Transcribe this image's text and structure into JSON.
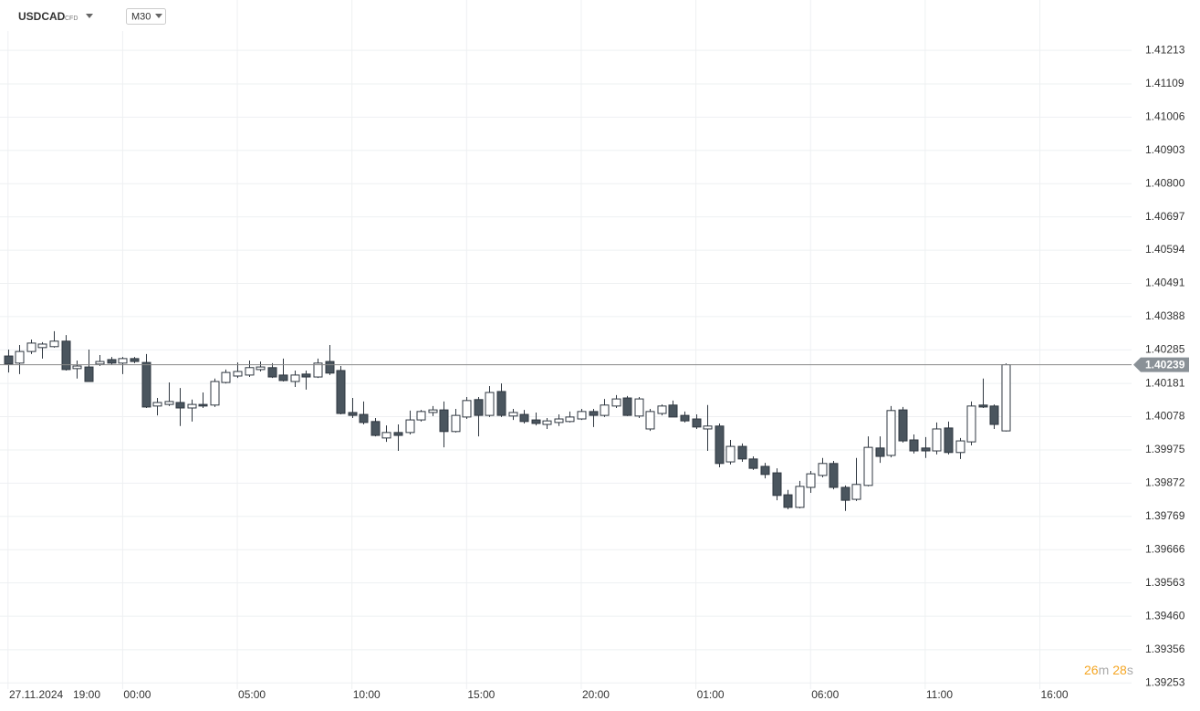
{
  "header": {
    "symbol": "USDCAD",
    "instrument_type": "CFD",
    "timeframe": "M30"
  },
  "countdown": {
    "minutes": "26",
    "minutes_unit": "m",
    "seconds": "28",
    "seconds_unit": "s"
  },
  "chart_data": {
    "type": "candlestick",
    "date_label": "27.11.2024",
    "up_color": "#ffffff",
    "down_color": "#4a555e",
    "outline_color": "#2f3740",
    "grid": true,
    "last_price": 1.40239,
    "xlim": [
      -0.7,
      98
    ],
    "xticks": [
      {
        "value": 0,
        "label": "19:00"
      },
      {
        "value": 10,
        "label": "00:00"
      },
      {
        "value": 20,
        "label": "05:00"
      },
      {
        "value": 30,
        "label": "10:00"
      },
      {
        "value": 40,
        "label": "15:00"
      },
      {
        "value": 50,
        "label": "20:00"
      },
      {
        "value": 60,
        "label": "01:00"
      },
      {
        "value": 70,
        "label": "06:00"
      },
      {
        "value": 80,
        "label": "11:00"
      },
      {
        "value": 90,
        "label": "16:00"
      }
    ],
    "ylim": [
      1.39234,
      1.41369
    ],
    "yticks": [
      1.41213,
      1.41109,
      1.41006,
      1.40903,
      {
        "value": 1.408,
        "label": "1.40800"
      },
      1.40697,
      1.40594,
      1.40491,
      1.40388,
      1.40285,
      1.40181,
      1.40078,
      1.39975,
      1.39872,
      1.39769,
      1.39666,
      1.39563,
      {
        "value": 1.3946,
        "label": "1.39460"
      },
      1.39356,
      1.39253
    ],
    "open": [
      1.40266,
      1.40244,
      1.4028,
      1.40292,
      1.40295,
      1.40312,
      1.40227,
      1.40232,
      1.40241,
      1.40255,
      1.40244,
      1.40258,
      1.40246,
      1.40111,
      1.40116,
      1.40122,
      1.40105,
      1.40116,
      1.40114,
      1.40184,
      1.40204,
      1.40207,
      1.40224,
      1.4023,
      1.40207,
      1.40187,
      1.4021,
      1.40201,
      1.40249,
      1.40221,
      1.40091,
      1.40085,
      1.40063,
      1.40012,
      1.40029,
      1.40029,
      1.40068,
      1.40091,
      1.40099,
      1.40032,
      1.40077,
      1.40131,
      1.40082,
      1.40156,
      1.4008,
      1.40085,
      1.40068,
      1.40054,
      1.4006,
      1.40063,
      1.40071,
      1.40094,
      1.40082,
      1.40111,
      1.40136,
      1.4008,
      1.4004,
      1.40088,
      1.40114,
      1.40082,
      1.40071,
      1.4004,
      1.40049,
      1.39938,
      1.39986,
      1.39947,
      1.39924,
      1.39904,
      1.39836,
      1.39797,
      1.39859,
      1.39896,
      1.39933,
      1.39859,
      1.39822,
      1.39865,
      1.39981,
      1.39958,
      1.40099,
      1.40006,
      1.39981,
      1.39972,
      1.40043,
      1.39967,
      1.4,
      1.40114,
      1.40111,
      1.40034
    ],
    "high": [
      1.40286,
      1.403,
      1.40317,
      1.40309,
      1.40343,
      1.40331,
      1.40252,
      1.40286,
      1.40269,
      1.40263,
      1.40263,
      1.40263,
      1.40272,
      1.40136,
      1.40184,
      1.40167,
      1.40131,
      1.40153,
      1.40196,
      1.40224,
      1.40246,
      1.40252,
      1.40249,
      1.40244,
      1.40258,
      1.40221,
      1.40221,
      1.40258,
      1.403,
      1.40235,
      1.40136,
      1.40125,
      1.40074,
      1.40051,
      1.40054,
      1.40097,
      1.40099,
      1.40111,
      1.40125,
      1.40102,
      1.40139,
      1.40139,
      1.40173,
      1.40181,
      1.40102,
      1.40099,
      1.40091,
      1.40074,
      1.40085,
      1.40094,
      1.40102,
      1.40102,
      1.40133,
      1.40145,
      1.40142,
      1.40139,
      1.40102,
      1.40116,
      1.40128,
      1.40094,
      1.40085,
      1.40114,
      1.40057,
      1.40006,
      1.39995,
      1.39955,
      1.39935,
      1.39918,
      1.39851,
      1.39879,
      1.3991,
      1.3995,
      1.39941,
      1.39865,
      1.3995,
      1.40017,
      1.40017,
      1.40111,
      1.40108,
      1.40023,
      1.40015,
      1.4006,
      1.40063,
      1.40012,
      1.40125,
      1.40196,
      1.40116,
      1.40243
    ],
    "low": [
      1.40215,
      1.4021,
      1.40272,
      1.40258,
      1.40292,
      1.40221,
      1.40196,
      1.40187,
      1.40235,
      1.40238,
      1.4021,
      1.40244,
      1.40105,
      1.40082,
      1.40111,
      1.40049,
      1.40063,
      1.40105,
      1.40108,
      1.40181,
      1.40198,
      1.40201,
      1.40218,
      1.40198,
      1.40187,
      1.4017,
      1.40162,
      1.40198,
      1.40207,
      1.40085,
      1.40074,
      1.40054,
      1.40017,
      1.4,
      1.39972,
      1.40023,
      1.40063,
      1.4008,
      1.39983,
      1.40029,
      1.40071,
      1.40017,
      1.40077,
      1.40077,
      1.40068,
      1.40057,
      1.40051,
      1.4004,
      1.40049,
      1.4006,
      1.40068,
      1.40046,
      1.40077,
      1.40105,
      1.4008,
      1.40074,
      1.40034,
      1.40082,
      1.40077,
      1.4006,
      1.4004,
      1.39972,
      1.39921,
      1.3993,
      1.39938,
      1.39913,
      1.39887,
      1.39819,
      1.39791,
      1.39794,
      1.39842,
      1.3989,
      1.39853,
      1.39786,
      1.39817,
      1.39862,
      1.39935,
      1.39952,
      1.39998,
      1.39964,
      1.3995,
      1.39961,
      1.39961,
      1.39947,
      1.39989,
      1.40105,
      1.4004,
      1.40032
    ],
    "close": [
      1.40241,
      1.4028,
      1.40306,
      1.40303,
      1.40312,
      1.40224,
      1.40235,
      1.40187,
      1.40249,
      1.40244,
      1.40258,
      1.40249,
      1.40108,
      1.40122,
      1.40125,
      1.40105,
      1.40116,
      1.40111,
      1.40187,
      1.40215,
      1.40218,
      1.4023,
      1.40232,
      1.40201,
      1.4019,
      1.40207,
      1.40201,
      1.40244,
      1.40213,
      1.40088,
      1.40082,
      1.4006,
      1.4002,
      1.40029,
      1.4002,
      1.40068,
      1.40094,
      1.40099,
      1.40032,
      1.40082,
      1.40128,
      1.40082,
      1.40153,
      1.40082,
      1.40091,
      1.40063,
      1.40057,
      1.40065,
      1.40071,
      1.40077,
      1.40094,
      1.40082,
      1.40114,
      1.40133,
      1.40082,
      1.40133,
      1.40094,
      1.40111,
      1.40077,
      1.40065,
      1.40046,
      1.40049,
      1.39933,
      1.39986,
      1.39947,
      1.39918,
      1.39899,
      1.39834,
      1.39797,
      1.39862,
      1.39901,
      1.39933,
      1.39859,
      1.39819,
      1.39868,
      1.39983,
      1.39955,
      1.40097,
      1.40003,
      1.39972,
      1.39972,
      1.4004,
      1.39967,
      1.40003,
      1.40111,
      1.40108,
      1.40054,
      1.40239
    ]
  }
}
